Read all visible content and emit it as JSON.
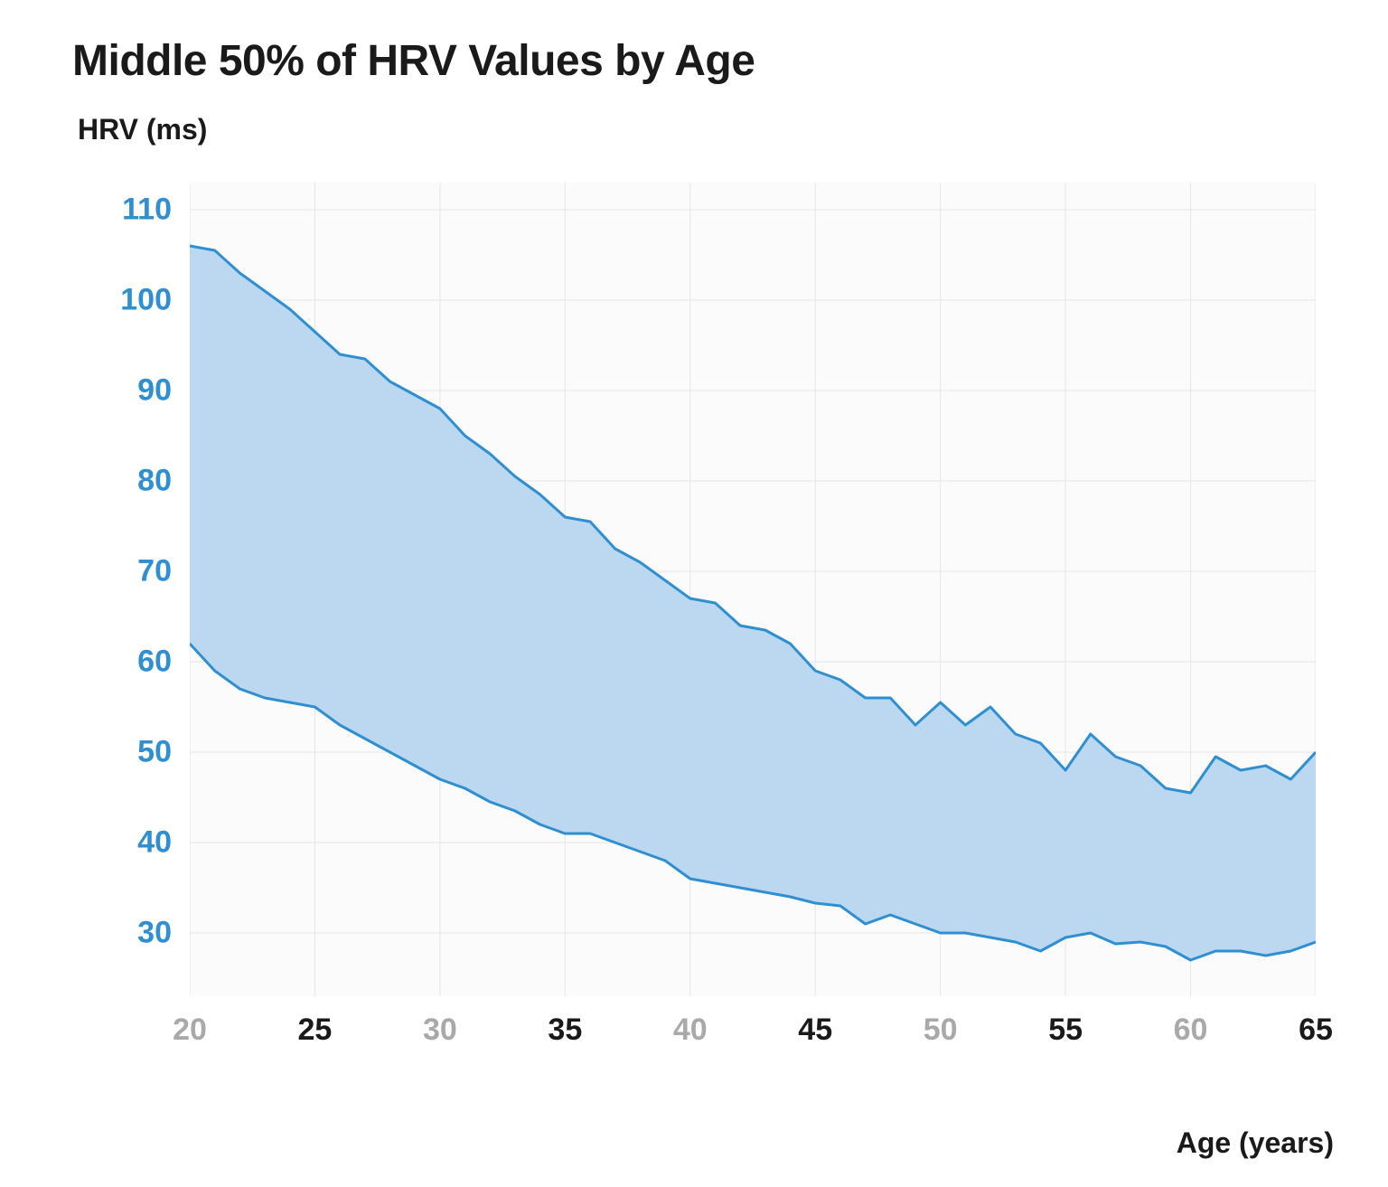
{
  "chart": {
    "type": "area_band",
    "title": "Middle 50% of HRV Values by Age",
    "ylabel": "HRV (ms)",
    "xlabel": "Age (years)",
    "title_fontsize": 48,
    "label_fontsize": 32,
    "tick_fontsize": 34,
    "background_color": "#ffffff",
    "plot_background_color": "#fbfbfb",
    "grid_color": "#e6e6e6",
    "grid_width": 1,
    "y_tick_color": "#2f8fd0",
    "x_tick_color_major": "#1a1a1a",
    "x_tick_color_minor": "#a9a9a9",
    "band_fill_color": "#bcd8f1",
    "band_fill_opacity": 1,
    "band_line_color": "#2f8fd0",
    "band_line_width": 3,
    "xlim": [
      20,
      65
    ],
    "ylim": [
      23,
      113
    ],
    "yticks": [
      30,
      40,
      50,
      60,
      70,
      80,
      90,
      100,
      110
    ],
    "xticks": [
      {
        "value": 20,
        "label": "20",
        "strong": false
      },
      {
        "value": 25,
        "label": "25",
        "strong": true
      },
      {
        "value": 30,
        "label": "30",
        "strong": false
      },
      {
        "value": 35,
        "label": "35",
        "strong": true
      },
      {
        "value": 40,
        "label": "40",
        "strong": false
      },
      {
        "value": 45,
        "label": "45",
        "strong": true
      },
      {
        "value": 50,
        "label": "50",
        "strong": false
      },
      {
        "value": 55,
        "label": "55",
        "strong": true
      },
      {
        "value": 60,
        "label": "60",
        "strong": false
      },
      {
        "value": 65,
        "label": "65",
        "strong": true
      }
    ],
    "x": [
      20,
      21,
      22,
      23,
      24,
      25,
      26,
      27,
      28,
      29,
      30,
      31,
      32,
      33,
      34,
      35,
      36,
      37,
      38,
      39,
      40,
      41,
      42,
      43,
      44,
      45,
      46,
      47,
      48,
      49,
      50,
      51,
      52,
      53,
      54,
      55,
      56,
      57,
      58,
      59,
      60,
      61,
      62,
      63,
      64,
      65
    ],
    "upper": [
      106,
      105.5,
      103,
      101,
      99,
      96.5,
      94,
      93.5,
      91,
      89.5,
      88,
      85,
      83,
      80.5,
      78.5,
      76,
      75.5,
      72.5,
      71,
      69,
      67,
      66.5,
      64,
      63.5,
      62,
      59,
      58,
      56,
      56,
      53,
      55.5,
      53,
      55,
      52,
      51,
      48,
      52,
      49.5,
      48.5,
      46,
      45.5,
      49.5,
      48,
      48.5,
      47,
      50
    ],
    "lower": [
      62,
      59,
      57,
      56,
      55.5,
      55,
      53,
      51.5,
      50,
      48.5,
      47,
      46,
      44.5,
      43.5,
      42,
      41,
      41,
      40,
      39,
      38,
      36,
      35.5,
      35,
      34.5,
      34,
      33.3,
      33,
      31,
      32,
      31,
      30,
      30,
      29.5,
      29,
      28,
      29.5,
      30,
      28.8,
      29,
      28.5,
      27,
      28,
      28,
      27.5,
      28,
      29
    ]
  }
}
